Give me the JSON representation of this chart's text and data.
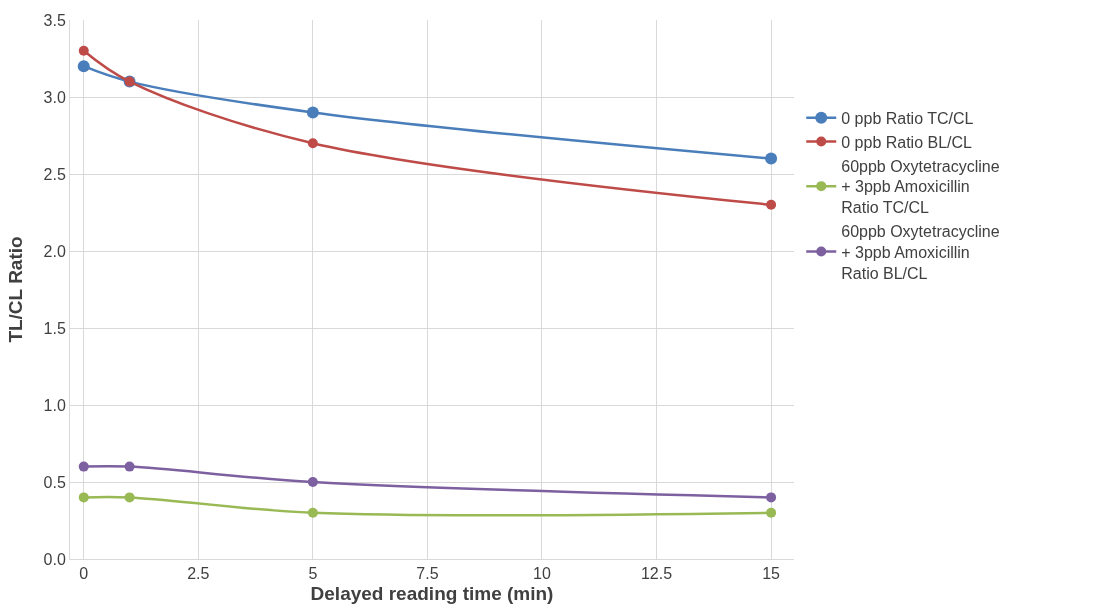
{
  "chart_data": {
    "type": "line",
    "xlabel": "Delayed reading time (min)",
    "ylabel": "TL/CL Ratio",
    "x": [
      0,
      1,
      5,
      15
    ],
    "series": [
      {
        "name": "0 ppb Ratio TC/CL",
        "color": "#4a7ebb",
        "values": [
          3.2,
          3.1,
          2.9,
          2.6
        ]
      },
      {
        "name": "0 ppb Ratio BL/CL",
        "color": "#be4b48",
        "values": [
          3.3,
          3.1,
          2.7,
          2.3
        ]
      },
      {
        "name": "60ppb Oxytetracycline + 3ppb Amoxicillin Ratio TC/CL",
        "color": "#98b954",
        "values": [
          0.4,
          0.4,
          0.3,
          0.3
        ]
      },
      {
        "name": "60ppb Oxytetracycline + 3ppb Amoxicillin Ratio BL/CL",
        "color": "#7d60a0",
        "values": [
          0.6,
          0.6,
          0.5,
          0.4
        ]
      }
    ],
    "xlim": [
      -0.3,
      15.5
    ],
    "xticks": [
      0,
      2.5,
      5,
      7.5,
      10,
      12.5,
      15
    ],
    "ylim": [
      0,
      3.5
    ],
    "yticks": [
      {
        "value": 0,
        "label": "0.0"
      },
      0.5,
      {
        "value": 1,
        "label": "1.0"
      },
      1.5,
      {
        "value": 2,
        "label": "2.0"
      },
      2.5,
      {
        "value": 3,
        "label": "3.0"
      },
      3.5
    ],
    "grid": true,
    "legend": "right",
    "marker": "circle",
    "line_style": "solid"
  }
}
